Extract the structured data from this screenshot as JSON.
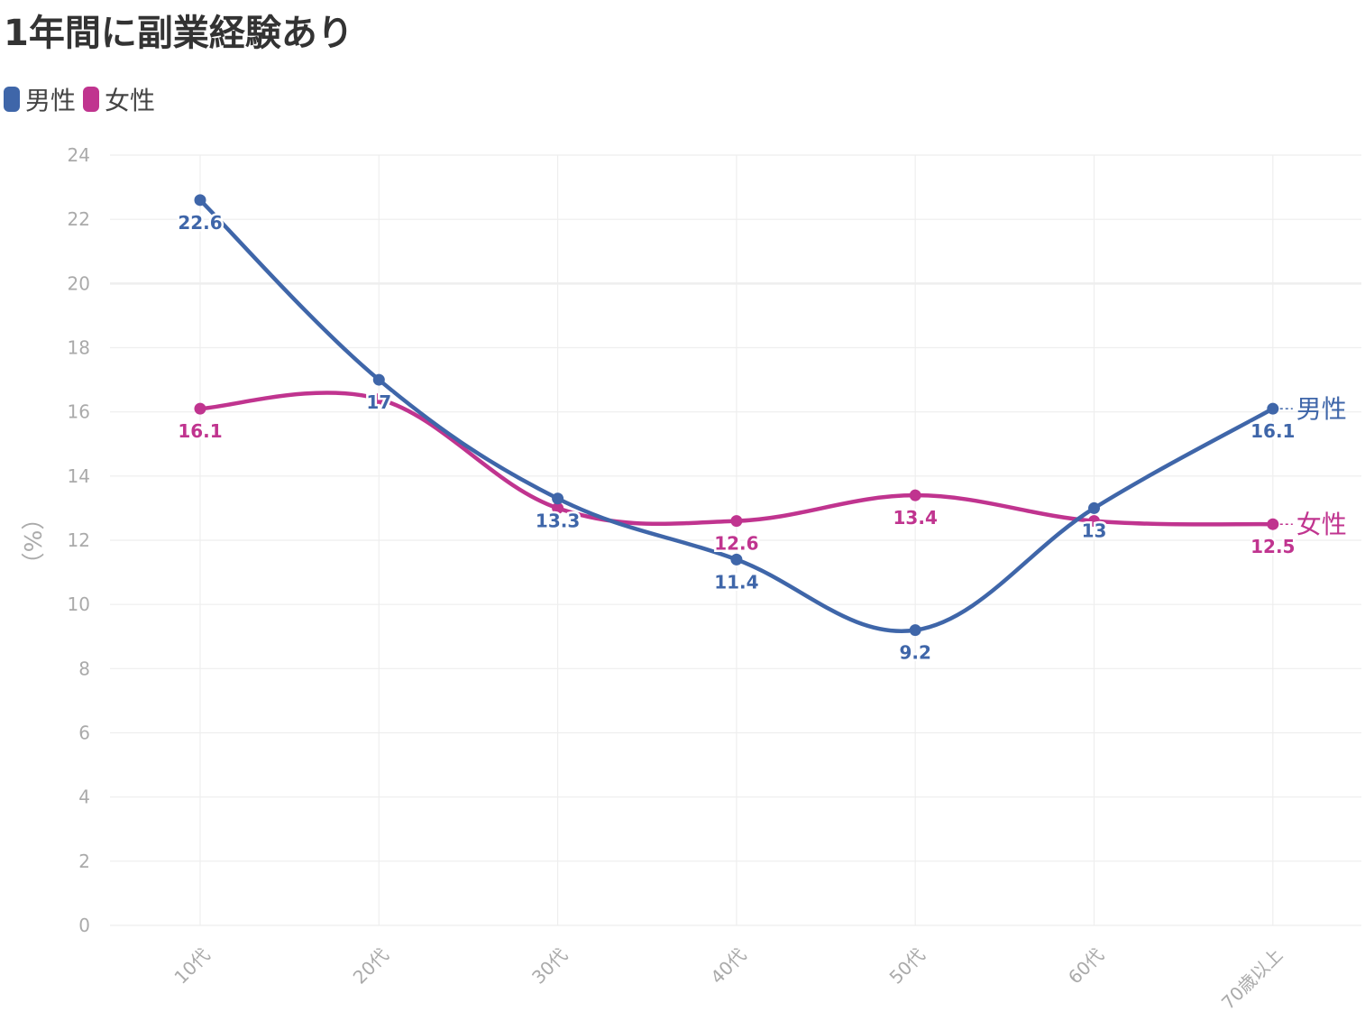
{
  "title": "1年間に副業経験あり",
  "colors": {
    "male": "#3f66a9",
    "female": "#c0348f",
    "grid": "#eeeeee",
    "tick": "#aaaaaa"
  },
  "chart_data": {
    "type": "line",
    "categories": [
      "10代",
      "20代",
      "30代",
      "40代",
      "50代",
      "60代",
      "70歳以上"
    ],
    "series": [
      {
        "name": "男性",
        "values": [
          22.6,
          17,
          13.3,
          11.4,
          9.2,
          13,
          16.1
        ]
      },
      {
        "name": "女性",
        "values": [
          16.1,
          16.4,
          13.0,
          12.6,
          13.4,
          12.6,
          12.5
        ]
      }
    ],
    "data_labels": {
      "男性": [
        "22.6",
        "17",
        "13.3",
        "11.4",
        "9.2",
        "13",
        "16.1"
      ],
      "女性": [
        "16.1",
        "",
        "",
        "12.6",
        "13.4",
        "",
        "12.5"
      ]
    },
    "ylabel": "（%）",
    "ylim": [
      0,
      24
    ],
    "yticks": [
      0,
      2,
      4,
      6,
      8,
      10,
      12,
      14,
      16,
      18,
      20,
      22,
      24
    ],
    "legend": "top-left",
    "grid": true
  }
}
